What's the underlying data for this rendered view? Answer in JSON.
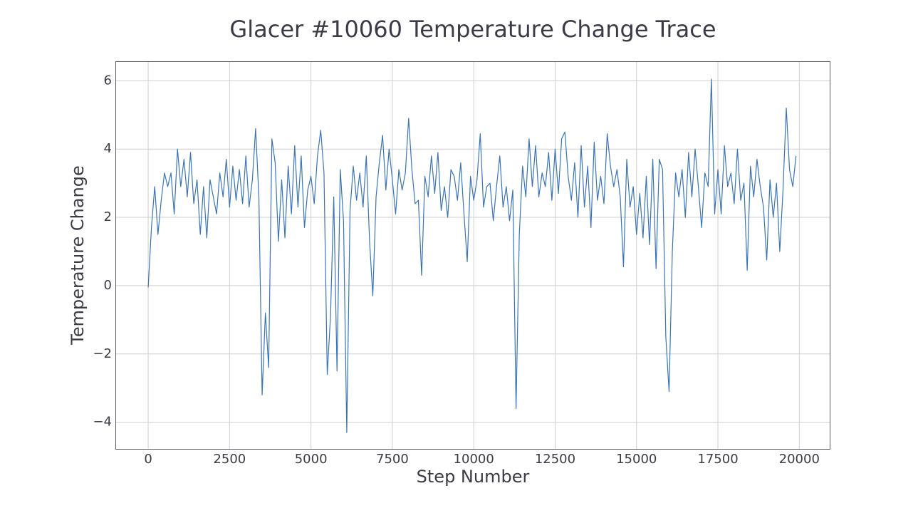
{
  "chart_data": {
    "type": "line",
    "title": "Glacer #10060 Temperature Change Trace",
    "x_label": "Step Number",
    "y_label": "Temperature Change",
    "x": [
      0,
      100,
      200,
      300,
      400,
      500,
      600,
      700,
      800,
      900,
      1000,
      1100,
      1200,
      1300,
      1400,
      1500,
      1600,
      1700,
      1800,
      1900,
      2000,
      2100,
      2200,
      2300,
      2400,
      2500,
      2600,
      2700,
      2800,
      2900,
      3000,
      3100,
      3200,
      3300,
      3400,
      3500,
      3600,
      3700,
      3800,
      3900,
      4000,
      4100,
      4200,
      4300,
      4400,
      4500,
      4600,
      4700,
      4800,
      4900,
      5000,
      5100,
      5200,
      5300,
      5400,
      5500,
      5600,
      5700,
      5800,
      5900,
      6000,
      6100,
      6200,
      6300,
      6400,
      6500,
      6600,
      6700,
      6800,
      6900,
      7000,
      7100,
      7200,
      7300,
      7400,
      7500,
      7600,
      7700,
      7800,
      7900,
      8000,
      8100,
      8200,
      8300,
      8400,
      8500,
      8600,
      8700,
      8800,
      8900,
      9000,
      9100,
      9200,
      9300,
      9400,
      9500,
      9600,
      9700,
      9800,
      9900,
      10000,
      10100,
      10200,
      10300,
      10400,
      10500,
      10600,
      10700,
      10800,
      10900,
      11000,
      11100,
      11200,
      11300,
      11400,
      11500,
      11600,
      11700,
      11800,
      11900,
      12000,
      12100,
      12200,
      12300,
      12400,
      12500,
      12600,
      12700,
      12800,
      12900,
      13000,
      13100,
      13200,
      13300,
      13400,
      13500,
      13600,
      13700,
      13800,
      13900,
      14000,
      14100,
      14200,
      14300,
      14400,
      14500,
      14600,
      14700,
      14800,
      14900,
      15000,
      15100,
      15200,
      15300,
      15400,
      15500,
      15600,
      15700,
      15800,
      15900,
      16000,
      16100,
      16200,
      16300,
      16400,
      16500,
      16600,
      16700,
      16800,
      16900,
      17000,
      17100,
      17200,
      17300,
      17400,
      17500,
      17600,
      17700,
      17800,
      17900,
      18000,
      18100,
      18200,
      18300,
      18400,
      18500,
      18600,
      18700,
      18800,
      18900,
      19000,
      19100,
      19200,
      19300,
      19400,
      19500,
      19600,
      19700,
      19800,
      19900
    ],
    "series": [
      {
        "name": "Temperature Change",
        "color": "#3a74b8",
        "values": [
          -0.05,
          1.7,
          2.9,
          1.5,
          2.5,
          3.3,
          2.9,
          3.3,
          2.1,
          4.0,
          2.9,
          3.7,
          2.6,
          3.9,
          2.4,
          3.1,
          1.5,
          2.9,
          1.4,
          3.1,
          2.6,
          2.1,
          3.3,
          2.6,
          3.7,
          2.3,
          3.5,
          2.5,
          3.4,
          2.4,
          3.8,
          2.3,
          3.1,
          4.6,
          2.6,
          -3.2,
          -0.8,
          -2.4,
          4.3,
          3.6,
          1.3,
          3.1,
          1.4,
          3.5,
          2.1,
          4.1,
          2.3,
          3.8,
          1.7,
          2.8,
          3.2,
          2.4,
          3.8,
          4.55,
          3.3,
          -2.6,
          -0.9,
          2.6,
          -2.5,
          3.4,
          1.9,
          -4.3,
          2.2,
          3.5,
          2.5,
          3.3,
          2.3,
          3.8,
          1.3,
          -0.3,
          2.6,
          3.6,
          4.4,
          2.8,
          4.0,
          3.1,
          2.1,
          3.4,
          2.8,
          3.3,
          4.9,
          3.4,
          2.4,
          2.5,
          0.3,
          3.2,
          2.6,
          3.8,
          2.7,
          3.9,
          2.2,
          2.9,
          2.0,
          3.4,
          3.2,
          2.5,
          3.6,
          2.1,
          0.7,
          3.2,
          2.5,
          3.1,
          4.45,
          2.3,
          2.9,
          3.0,
          1.9,
          2.9,
          3.8,
          2.3,
          2.9,
          1.9,
          2.8,
          -3.6,
          1.5,
          3.5,
          2.6,
          4.3,
          2.9,
          4.1,
          2.6,
          3.3,
          2.9,
          3.9,
          2.5,
          4.0,
          2.7,
          4.3,
          4.5,
          3.2,
          2.5,
          3.6,
          2.0,
          4.1,
          2.3,
          3.5,
          1.7,
          4.2,
          2.5,
          3.2,
          2.4,
          4.45,
          3.5,
          2.9,
          3.4,
          2.6,
          0.55,
          3.7,
          2.3,
          2.9,
          1.5,
          2.7,
          1.4,
          3.2,
          1.2,
          3.7,
          0.5,
          3.7,
          3.4,
          -1.5,
          -3.1,
          1.0,
          3.3,
          2.6,
          3.4,
          2.0,
          3.9,
          2.6,
          4.0,
          2.9,
          1.7,
          3.3,
          2.9,
          6.05,
          2.1,
          3.4,
          2.1,
          4.1,
          2.9,
          3.3,
          2.4,
          4.0,
          2.5,
          3.0,
          0.45,
          3.5,
          2.6,
          3.7,
          2.9,
          2.3,
          0.75,
          3.1,
          2.0,
          3.0,
          1.0,
          2.8,
          5.2,
          3.4,
          2.9,
          3.8
        ]
      }
    ],
    "xlim": [
      -997,
      20945
    ],
    "ylim": [
      -4.79,
      6.56
    ],
    "xticks": [
      0,
      2500,
      5000,
      7500,
      10000,
      12500,
      15000,
      17500,
      20000
    ],
    "yticks": [
      {
        "value": -4,
        "label": "−4"
      },
      {
        "value": -2,
        "label": "−2"
      },
      0,
      2,
      4,
      6
    ],
    "grid": true
  }
}
